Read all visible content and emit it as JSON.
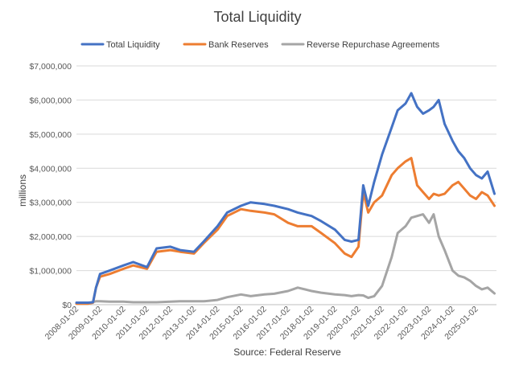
{
  "chart_data": {
    "type": "line",
    "title": "Total Liquidity",
    "ylabel": "millions",
    "xlabel": "Source: Federal Reserve",
    "ylim": [
      0,
      7000000
    ],
    "yticks": [
      "$0",
      "$1,000,000",
      "$2,000,000",
      "$3,000,000",
      "$4,000,000",
      "$5,000,000",
      "$6,000,000",
      "$7,000,000"
    ],
    "xticks": [
      "2008-01-02",
      "2009-01-02",
      "2010-01-02",
      "2011-01-02",
      "2012-01-02",
      "2013-01-02",
      "2014-01-02",
      "2015-01-02",
      "2016-01-02",
      "2017-01-02",
      "2018-01-02",
      "2019-01-02",
      "2020-01-02",
      "2021-01-02",
      "2022-01-02",
      "2023-01-02",
      "2024-01-02",
      "2025-01-02"
    ],
    "x": [
      "2008-01-02",
      "2008-07-01",
      "2008-09-15",
      "2008-11-01",
      "2009-01-02",
      "2009-06-01",
      "2010-01-02",
      "2010-06-01",
      "2011-01-02",
      "2011-06-01",
      "2012-01-02",
      "2012-06-01",
      "2013-01-02",
      "2013-06-01",
      "2014-01-02",
      "2014-06-01",
      "2015-01-02",
      "2015-06-01",
      "2016-01-02",
      "2016-06-01",
      "2017-01-02",
      "2017-06-01",
      "2018-01-02",
      "2018-06-01",
      "2019-01-02",
      "2019-06-01",
      "2019-09-15",
      "2020-01-02",
      "2020-03-15",
      "2020-06-01",
      "2020-09-01",
      "2021-01-02",
      "2021-06-01",
      "2021-09-01",
      "2022-01-02",
      "2022-04-01",
      "2022-07-01",
      "2022-10-01",
      "2023-01-02",
      "2023-03-15",
      "2023-06-01",
      "2023-09-01",
      "2024-01-02",
      "2024-04-01",
      "2024-07-01",
      "2024-10-01",
      "2025-01-02",
      "2025-04-01",
      "2025-07-01",
      "2025-10-15"
    ],
    "series": [
      {
        "name": "Total Liquidity",
        "color": "#4472C4",
        "values": [
          60000,
          60000,
          70000,
          500000,
          900000,
          1000000,
          1150000,
          1250000,
          1100000,
          1650000,
          1700000,
          1600000,
          1550000,
          1850000,
          2300000,
          2700000,
          2900000,
          3000000,
          2950000,
          2900000,
          2800000,
          2700000,
          2600000,
          2450000,
          2200000,
          1900000,
          1850000,
          1900000,
          3500000,
          2900000,
          3600000,
          4400000,
          5200000,
          5700000,
          5900000,
          6200000,
          5800000,
          5600000,
          5700000,
          5800000,
          6000000,
          5300000,
          4800000,
          4500000,
          4300000,
          4000000,
          3800000,
          3700000,
          3900000,
          3250000
        ]
      },
      {
        "name": "Bank Reserves",
        "color": "#ED7D31",
        "values": [
          30000,
          30000,
          60000,
          500000,
          820000,
          900000,
          1050000,
          1150000,
          1050000,
          1550000,
          1600000,
          1550000,
          1500000,
          1800000,
          2200000,
          2600000,
          2800000,
          2750000,
          2700000,
          2650000,
          2400000,
          2300000,
          2300000,
          2100000,
          1800000,
          1500000,
          1400000,
          1700000,
          3300000,
          2700000,
          3000000,
          3200000,
          3800000,
          4000000,
          4200000,
          4300000,
          3500000,
          3300000,
          3100000,
          3250000,
          3200000,
          3250000,
          3500000,
          3600000,
          3400000,
          3200000,
          3100000,
          3300000,
          3200000,
          2900000
        ]
      },
      {
        "name": "Reverse Repurchase Agreements",
        "color": "#A5A5A5",
        "values": [
          30000,
          30000,
          80000,
          100000,
          100000,
          90000,
          90000,
          70000,
          70000,
          70000,
          90000,
          100000,
          100000,
          100000,
          140000,
          220000,
          300000,
          250000,
          300000,
          320000,
          400000,
          500000,
          400000,
          350000,
          300000,
          280000,
          250000,
          280000,
          270000,
          200000,
          250000,
          550000,
          1400000,
          2100000,
          2300000,
          2550000,
          2600000,
          2650000,
          2400000,
          2650000,
          2000000,
          1600000,
          1000000,
          850000,
          800000,
          700000,
          550000,
          450000,
          500000,
          330000
        ]
      }
    ]
  }
}
